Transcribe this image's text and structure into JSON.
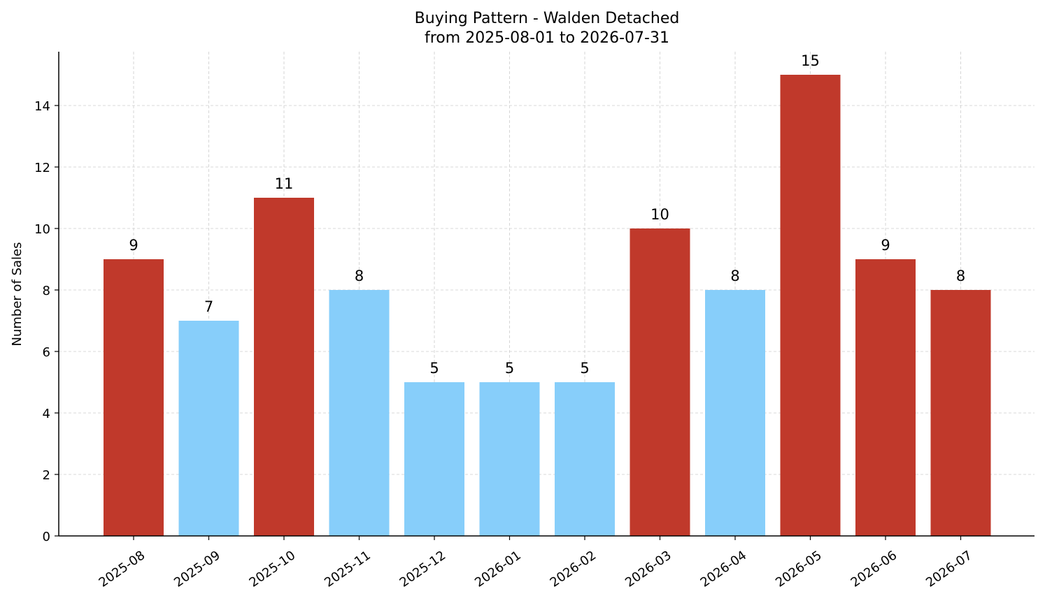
{
  "chart_data": {
    "type": "bar",
    "title": "Buying Pattern - Walden Detached",
    "subtitle": "from 2025-08-01 to 2026-07-31",
    "xlabel": "",
    "ylabel": "Number of Sales",
    "categories": [
      "2025-08",
      "2025-09",
      "2025-10",
      "2025-11",
      "2025-12",
      "2026-01",
      "2026-02",
      "2026-03",
      "2026-04",
      "2026-05",
      "2026-06",
      "2026-07"
    ],
    "values": [
      9,
      7,
      11,
      8,
      5,
      5,
      5,
      10,
      8,
      15,
      9,
      8
    ],
    "bar_colors": [
      "#c0392b",
      "#87cefa",
      "#c0392b",
      "#87cefa",
      "#87cefa",
      "#87cefa",
      "#87cefa",
      "#c0392b",
      "#87cefa",
      "#c0392b",
      "#c0392b",
      "#c0392b"
    ],
    "ylim": [
      0,
      15.75
    ],
    "yticks": [
      0,
      2,
      4,
      6,
      8,
      10,
      12,
      14
    ],
    "grid": true,
    "legend": "none",
    "data_labels": true
  }
}
